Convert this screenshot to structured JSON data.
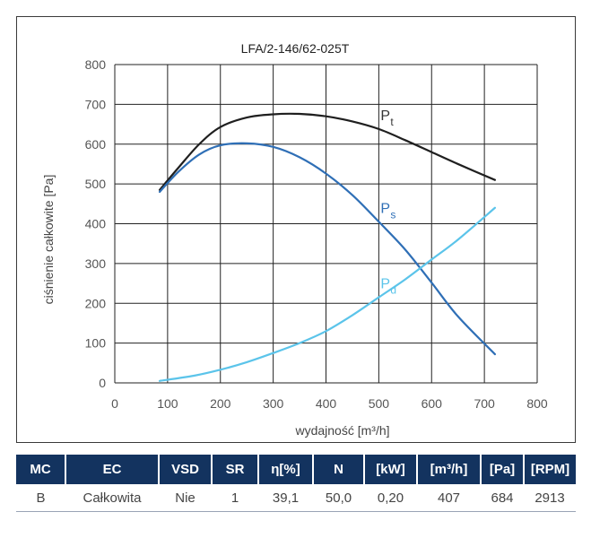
{
  "chart_data": {
    "type": "line",
    "title": "LFA/2-146/62-025T",
    "xlabel": "wydajność [m³/h]",
    "ylabel": "ciśnienie całkowite [Pa]",
    "xlim": [
      0,
      800
    ],
    "ylim": [
      0,
      800
    ],
    "xticks": [
      "0",
      "100",
      "200",
      "300",
      "400",
      "500",
      "600",
      "700",
      "800"
    ],
    "yticks": [
      "0",
      "100",
      "200",
      "300",
      "400",
      "500",
      "600",
      "700",
      "800"
    ],
    "grid": true,
    "series": [
      {
        "name": "Pt",
        "label_main": "P",
        "label_sub": "t",
        "color": "#1f1f1f",
        "x": [
          85,
          120,
          160,
          200,
          250,
          300,
          350,
          400,
          450,
          500,
          550,
          600,
          650,
          720
        ],
        "y": [
          485,
          540,
          600,
          643,
          667,
          675,
          676,
          670,
          657,
          638,
          610,
          580,
          550,
          510
        ],
        "label_at": [
          500,
          638
        ]
      },
      {
        "name": "Ps",
        "label_main": "P",
        "label_sub": "s",
        "color": "#2f6fb6",
        "x": [
          85,
          120,
          160,
          200,
          250,
          300,
          350,
          400,
          450,
          500,
          550,
          600,
          650,
          720
        ],
        "y": [
          480,
          530,
          574,
          597,
          602,
          593,
          567,
          526,
          472,
          405,
          335,
          252,
          167,
          72
        ],
        "label_at": [
          500,
          405
        ]
      },
      {
        "name": "Pd",
        "label_main": "P",
        "label_sub": "d",
        "color": "#5bc4ea",
        "x": [
          85,
          150,
          200,
          250,
          300,
          350,
          400,
          450,
          500,
          550,
          600,
          650,
          720
        ],
        "y": [
          5,
          18,
          33,
          52,
          75,
          100,
          130,
          170,
          215,
          260,
          310,
          360,
          440
        ],
        "label_at": [
          500,
          215
        ]
      }
    ]
  },
  "table": {
    "headers": [
      "MC",
      "EC",
      "VSD",
      "SR",
      "η[%]",
      "N",
      "[kW]",
      "[m³/h]",
      "[Pa]",
      "[RPM]"
    ],
    "row": [
      "B",
      "Całkowita",
      "Nie",
      "1",
      "39,1",
      "50,0",
      "0,20",
      "407",
      "684",
      "2913"
    ]
  }
}
